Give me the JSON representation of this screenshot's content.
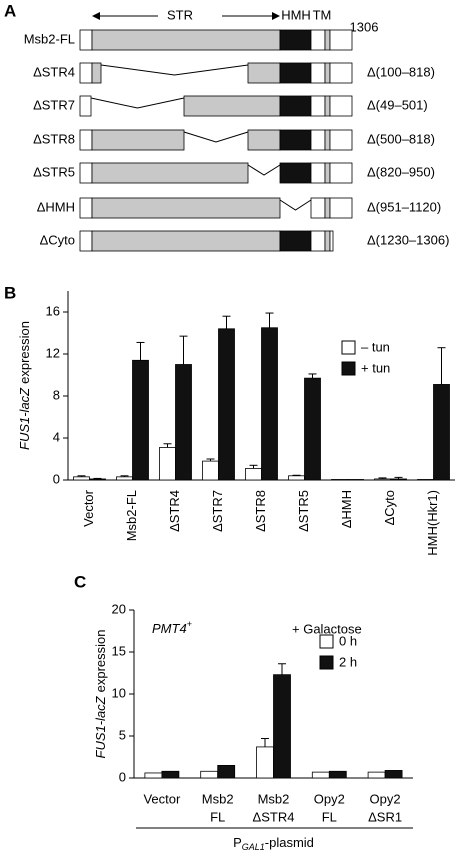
{
  "diagram": {
    "label": "A",
    "domains": [
      "STR",
      "HMH",
      "TM"
    ],
    "length": "1306",
    "constructs": [
      {
        "name": "Msb2-FL"
      },
      {
        "name": "ΔSTR4",
        "deletion": "Δ(100–818)"
      },
      {
        "name": "ΔSTR7",
        "deletion": "Δ(49–501)"
      },
      {
        "name": "ΔSTR8",
        "deletion": "Δ(500–818)"
      },
      {
        "name": "ΔSTR5",
        "deletion": "Δ(820–950)"
      },
      {
        "name": "ΔHMH",
        "deletion": "Δ(951–1120)"
      },
      {
        "name": "ΔCyto",
        "deletion": "Δ(1230–1306)"
      }
    ]
  },
  "chart_data": [
    {
      "type": "bar",
      "panel_label": "B",
      "ylabel": {
        "gene": "FUS1-lacZ",
        "text": "expression"
      },
      "categories": [
        "Vector",
        "Msb2-FL",
        "ΔSTR4",
        "ΔSTR7",
        "ΔSTR8",
        "ΔSTR5",
        "ΔHMH",
        "ΔCyto",
        "HMH(Hkr1)"
      ],
      "series": [
        {
          "name": "– tun",
          "color": "#ffffff",
          "values": [
            0.3,
            0.3,
            3.1,
            1.8,
            1.1,
            0.4,
            0.05,
            0.1,
            0.05
          ],
          "errors": [
            0.1,
            0.1,
            0.35,
            0.2,
            0.3,
            0.05,
            0,
            0.1,
            0
          ]
        },
        {
          "name": "+ tun",
          "color": "#111111",
          "values": [
            0.1,
            11.4,
            11.0,
            14.4,
            14.5,
            9.7,
            0.05,
            0.1,
            9.1
          ],
          "errors": [
            0.05,
            1.7,
            2.7,
            1.2,
            1.4,
            0.4,
            0,
            0.15,
            3.5
          ]
        }
      ],
      "ylim": [
        0,
        18
      ],
      "yticks": [
        0,
        4,
        8,
        12,
        16
      ],
      "legend": "upper right"
    },
    {
      "type": "bar",
      "panel_label": "C",
      "ylabel": {
        "gene": "FUS1-lacZ",
        "text": "expression"
      },
      "strain": {
        "name": "PMT4",
        "sup": "+"
      },
      "condition": "+ Galactose",
      "categories": [
        [
          "Vector"
        ],
        [
          "Msb2",
          "FL"
        ],
        [
          "Msb2",
          "ΔSTR4"
        ],
        [
          "Opy2",
          "FL"
        ],
        [
          "Opy2",
          "ΔSR1"
        ]
      ],
      "group_label": {
        "text": "P",
        "sub": "GAL1",
        "suffix": "-plasmid"
      },
      "series": [
        {
          "name": "0 h",
          "color": "#ffffff",
          "values": [
            0.6,
            0.8,
            3.7,
            0.7,
            0.7
          ],
          "errors": [
            0,
            0,
            1.0,
            0,
            0
          ]
        },
        {
          "name": "2 h",
          "color": "#111111",
          "values": [
            0.8,
            1.5,
            12.3,
            0.8,
            0.9
          ],
          "errors": [
            0,
            0,
            1.3,
            0,
            0
          ]
        }
      ],
      "ylim": [
        0,
        20
      ],
      "yticks": [
        0,
        5,
        10,
        15,
        20
      ],
      "legend": "upper right"
    }
  ]
}
